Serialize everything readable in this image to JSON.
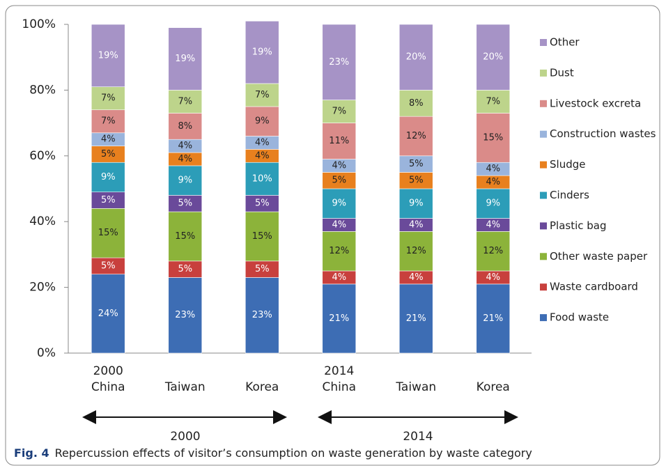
{
  "chart_data": {
    "type": "stacked_bar",
    "categories": [
      "2000\nChina",
      "Taiwan",
      "Korea",
      "2014\nChina",
      "Taiwan",
      "Korea"
    ],
    "group_labels": [
      "2000",
      "2014"
    ],
    "ylim": [
      0,
      100
    ],
    "yticks": [
      {
        "value": 0,
        "label": "0%"
      },
      {
        "value": 20,
        "label": "20%"
      },
      {
        "value": 40,
        "label": "40%"
      },
      {
        "value": 60,
        "label": "60%"
      },
      {
        "value": 80,
        "label": "80%"
      },
      {
        "value": 100,
        "label": "100%"
      }
    ],
    "legend": "right",
    "series": [
      {
        "name": "Food waste",
        "color": "#3d6db4",
        "label_color": "#ffffff",
        "values": [
          24,
          23,
          23,
          21,
          21,
          21
        ],
        "value_labels": [
          "24%",
          "23%",
          "23%",
          "21%",
          "21%",
          "21%"
        ]
      },
      {
        "name": "Waste cardboard",
        "color": "#c8403d",
        "label_color": "#ffffff",
        "values": [
          5,
          5,
          5,
          4,
          4,
          4
        ],
        "value_labels": [
          "5%",
          "5%",
          "5%",
          "4%",
          "4%",
          "4%"
        ]
      },
      {
        "name": "Other waste paper",
        "color": "#8cb33a",
        "label_color": "#222222",
        "values": [
          15,
          15,
          15,
          12,
          12,
          12
        ],
        "value_labels": [
          "15%",
          "15%",
          "15%",
          "12%",
          "12%",
          "12%"
        ]
      },
      {
        "name": "Plastic bag",
        "color": "#6a4a9a",
        "label_color": "#ffffff",
        "values": [
          5,
          5,
          5,
          4,
          4,
          4
        ],
        "value_labels": [
          "5%",
          "5%",
          "5%",
          "4%",
          "4%",
          "4%"
        ]
      },
      {
        "name": "Cinders",
        "color": "#2c9db8",
        "label_color": "#ffffff",
        "values": [
          9,
          9,
          10,
          9,
          9,
          9
        ],
        "value_labels": [
          "9%",
          "9%",
          "10%",
          "9%",
          "9%",
          "9%"
        ]
      },
      {
        "name": "Sludge",
        "color": "#e8801e",
        "label_color": "#222222",
        "values": [
          5,
          4,
          4,
          5,
          5,
          4
        ],
        "value_labels": [
          "5%",
          "4%",
          "4%",
          "5%",
          "5%",
          "4%"
        ]
      },
      {
        "name": "Construction wastes",
        "color": "#9ab4dc",
        "label_color": "#222222",
        "values": [
          4,
          4,
          4,
          4,
          5,
          4
        ],
        "value_labels": [
          "4%",
          "4%",
          "4%",
          "4%",
          "5%",
          "4%"
        ]
      },
      {
        "name": "Livestock excreta",
        "color": "#da8b89",
        "label_color": "#222222",
        "values": [
          7,
          8,
          9,
          11,
          12,
          15
        ],
        "value_labels": [
          "7%",
          "8%",
          "9%",
          "11%",
          "12%",
          "15%"
        ]
      },
      {
        "name": "Dust",
        "color": "#bdd48b",
        "label_color": "#222222",
        "values": [
          7,
          7,
          7,
          7,
          8,
          7
        ],
        "value_labels": [
          "7%",
          "7%",
          "7%",
          "7%",
          "8%",
          "7%"
        ]
      },
      {
        "name": "Other",
        "color": "#a693c6",
        "label_color": "#ffffff",
        "values": [
          19,
          19,
          19,
          23,
          20,
          20
        ],
        "value_labels": [
          "19%",
          "19%",
          "19%",
          "23%",
          "20%",
          "20%"
        ]
      }
    ]
  },
  "caption": {
    "label": "Fig. 4",
    "text": "Repercussion effects of visitor’s consumption on waste generation by waste category"
  }
}
